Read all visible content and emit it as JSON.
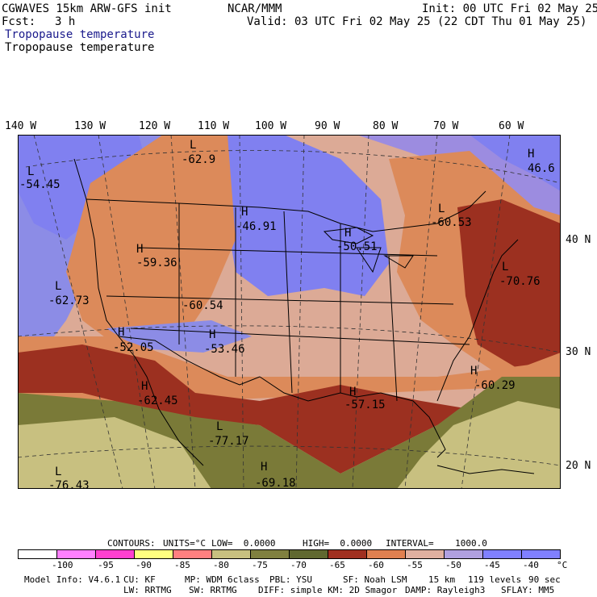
{
  "header": {
    "model": "CGWAVES 15km ARW-GFS init",
    "fcst_label": "Fcst:",
    "fcst_value": "3 h",
    "org": "NCAR/MMM",
    "init": "Init: 00 UTC Fri 02 May 25",
    "valid": "Valid: 03 UTC Fri 02 May 25 (22 CDT Thu 01 May 25)",
    "field_title_1": "Tropopause temperature",
    "field_title_2": "Tropopause temperature"
  },
  "map": {
    "lon_labels": [
      "140 W",
      "130 W",
      "120 W",
      "110 W",
      "100 W",
      "90 W",
      "80 W",
      "70 W",
      "60 W"
    ],
    "lat_labels": [
      "40 N",
      "30 N",
      "20 N"
    ],
    "centers": [
      {
        "type": "L",
        "value": "-62.9"
      },
      {
        "type": "L",
        "value": "-54.45"
      },
      {
        "type": "H",
        "value": "46.6"
      },
      {
        "type": "H",
        "value": "-46.91"
      },
      {
        "type": "L",
        "value": "-60.53"
      },
      {
        "type": "H",
        "value": "-59.36"
      },
      {
        "type": "H",
        "value": "-50.51"
      },
      {
        "type": "L",
        "value": "-70.76"
      },
      {
        "type": "L",
        "value": "-62.73"
      },
      {
        "type": "",
        "value": "-60.54"
      },
      {
        "type": "H",
        "value": "-52.05"
      },
      {
        "type": "H",
        "value": "-53.46"
      },
      {
        "type": "H",
        "value": "-60.29"
      },
      {
        "type": "H",
        "value": "-62.45"
      },
      {
        "type": "H",
        "value": "-57.15"
      },
      {
        "type": "L",
        "value": "-77.17"
      },
      {
        "type": "H",
        "value": "-69.18"
      },
      {
        "type": "L",
        "value": "-76.43"
      }
    ]
  },
  "contours": {
    "label": "CONTOURS:",
    "units": "UNITS=°C",
    "low": "LOW=  0.0000",
    "high": "HIGH=  0.0000",
    "interval": "INTERVAL=    1000.0"
  },
  "legend": {
    "colors": [
      "#ffffff",
      "#ff80ff",
      "#ff40d0",
      "#ffff80",
      "#ff8080",
      "#c8c080",
      "#808040",
      "#606830",
      "#a03020",
      "#e08050",
      "#e0b0a0",
      "#b0a0e0",
      "#8080ff",
      "#8080ff"
    ],
    "ticks": [
      "-100",
      "-95",
      "-90",
      "-85",
      "-80",
      "-75",
      "-70",
      "-65",
      "-60",
      "-55",
      "-50",
      "-45",
      "-40",
      "°C"
    ]
  },
  "footer": {
    "line1": [
      "Model Info: V4.6.1",
      "CU: KF",
      "MP: WDM 6class",
      "PBL: YSU",
      "SF: Noah LSM",
      "15 km",
      "119 levels",
      "90 sec"
    ],
    "line2": [
      "LW: RRTMG",
      "SW: RRTMG",
      "DIFF: simple KM: 2D Smagor",
      "DAMP: Rayleigh3",
      "SFLAY: MM5"
    ]
  }
}
